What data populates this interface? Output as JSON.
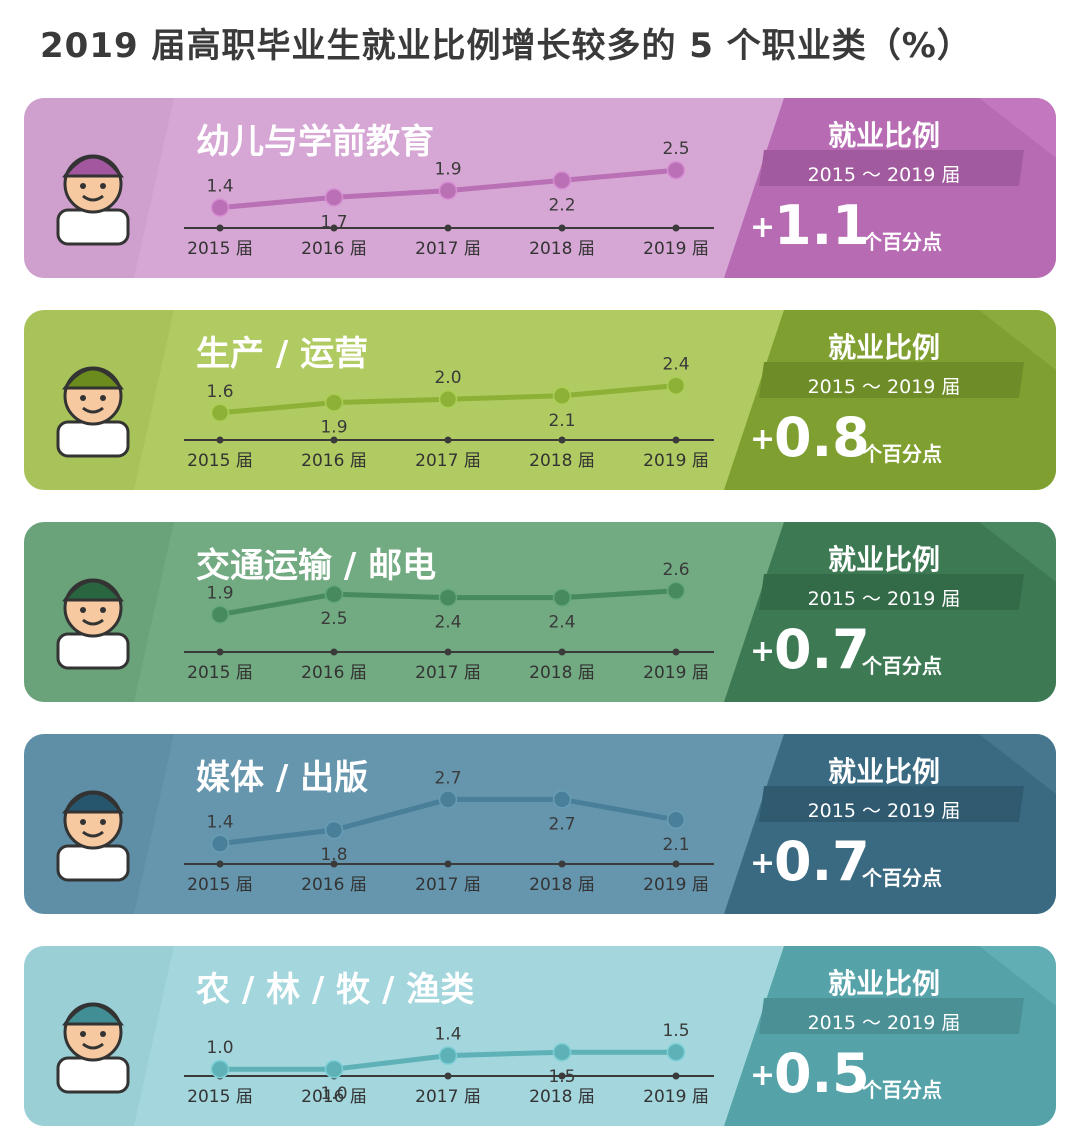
{
  "page": {
    "title": "2019 届高职毕业生就业比例增长较多的 5 个职业类（%）"
  },
  "chart_data": [
    {
      "type": "line",
      "title": "幼儿与学前教育",
      "x": [
        "2015 届",
        "2016 届",
        "2017 届",
        "2018 届",
        "2019 届"
      ],
      "series": [
        {
          "values": [
            1.4,
            1.7,
            1.9,
            2.2,
            2.5
          ]
        }
      ],
      "panel": {
        "title": "就业比例",
        "range": "2015 ～ 2019 届",
        "plus": "+",
        "delta": "1.1",
        "unit": "个百分点"
      },
      "colors": {
        "card": "#cf9fcd",
        "panel": "#b66bb2",
        "band": "#a25a9e",
        "line": "#b970b5"
      }
    },
    {
      "type": "line",
      "title": "生产 / 运营",
      "x": [
        "2015 届",
        "2016 届",
        "2017 届",
        "2018 届",
        "2019 届"
      ],
      "series": [
        {
          "values": [
            1.6,
            1.9,
            2.0,
            2.1,
            2.4
          ]
        }
      ],
      "panel": {
        "title": "就业比例",
        "range": "2015 ～ 2019 届",
        "plus": "+",
        "delta": "0.8",
        "unit": "个百分点"
      },
      "colors": {
        "card": "#a8c35a",
        "panel": "#7f9f31",
        "band": "#6e8c27",
        "line": "#8db137"
      }
    },
    {
      "type": "line",
      "title": "交通运输 / 邮电",
      "x": [
        "2015 届",
        "2016 届",
        "2017 届",
        "2018 届",
        "2019 届"
      ],
      "series": [
        {
          "values": [
            1.9,
            2.5,
            2.4,
            2.4,
            2.6
          ]
        }
      ],
      "panel": {
        "title": "就业比例",
        "range": "2015 ～ 2019 届",
        "plus": "+",
        "delta": "0.7",
        "unit": "个百分点"
      },
      "colors": {
        "card": "#6aa37a",
        "panel": "#3d7a54",
        "band": "#336a48",
        "line": "#468a5e"
      }
    },
    {
      "type": "line",
      "title": "媒体 / 出版",
      "x": [
        "2015 届",
        "2016 届",
        "2017 届",
        "2018 届",
        "2019 届"
      ],
      "series": [
        {
          "values": [
            1.4,
            1.8,
            2.7,
            2.7,
            2.1
          ]
        }
      ],
      "panel": {
        "title": "就业比例",
        "range": "2015 ～ 2019 届",
        "plus": "+",
        "delta": "0.7",
        "unit": "个百分点"
      },
      "colors": {
        "card": "#5e8fa6",
        "panel": "#3a6a82",
        "band": "#2f5a70",
        "line": "#4a7f99"
      }
    },
    {
      "type": "line",
      "title": "农 / 林 / 牧 / 渔类",
      "x": [
        "2015 届",
        "2016 届",
        "2017 届",
        "2018 届",
        "2019 届"
      ],
      "series": [
        {
          "values": [
            1.0,
            1.0,
            1.4,
            1.5,
            1.5
          ]
        }
      ],
      "panel": {
        "title": "就业比例",
        "range": "2015 ～ 2019 届",
        "plus": "+",
        "delta": "0.5",
        "unit": "个百分点"
      },
      "colors": {
        "card": "#9bcfd6",
        "panel": "#55a3a9",
        "band": "#4a9095",
        "line": "#5fb1b8"
      }
    }
  ]
}
